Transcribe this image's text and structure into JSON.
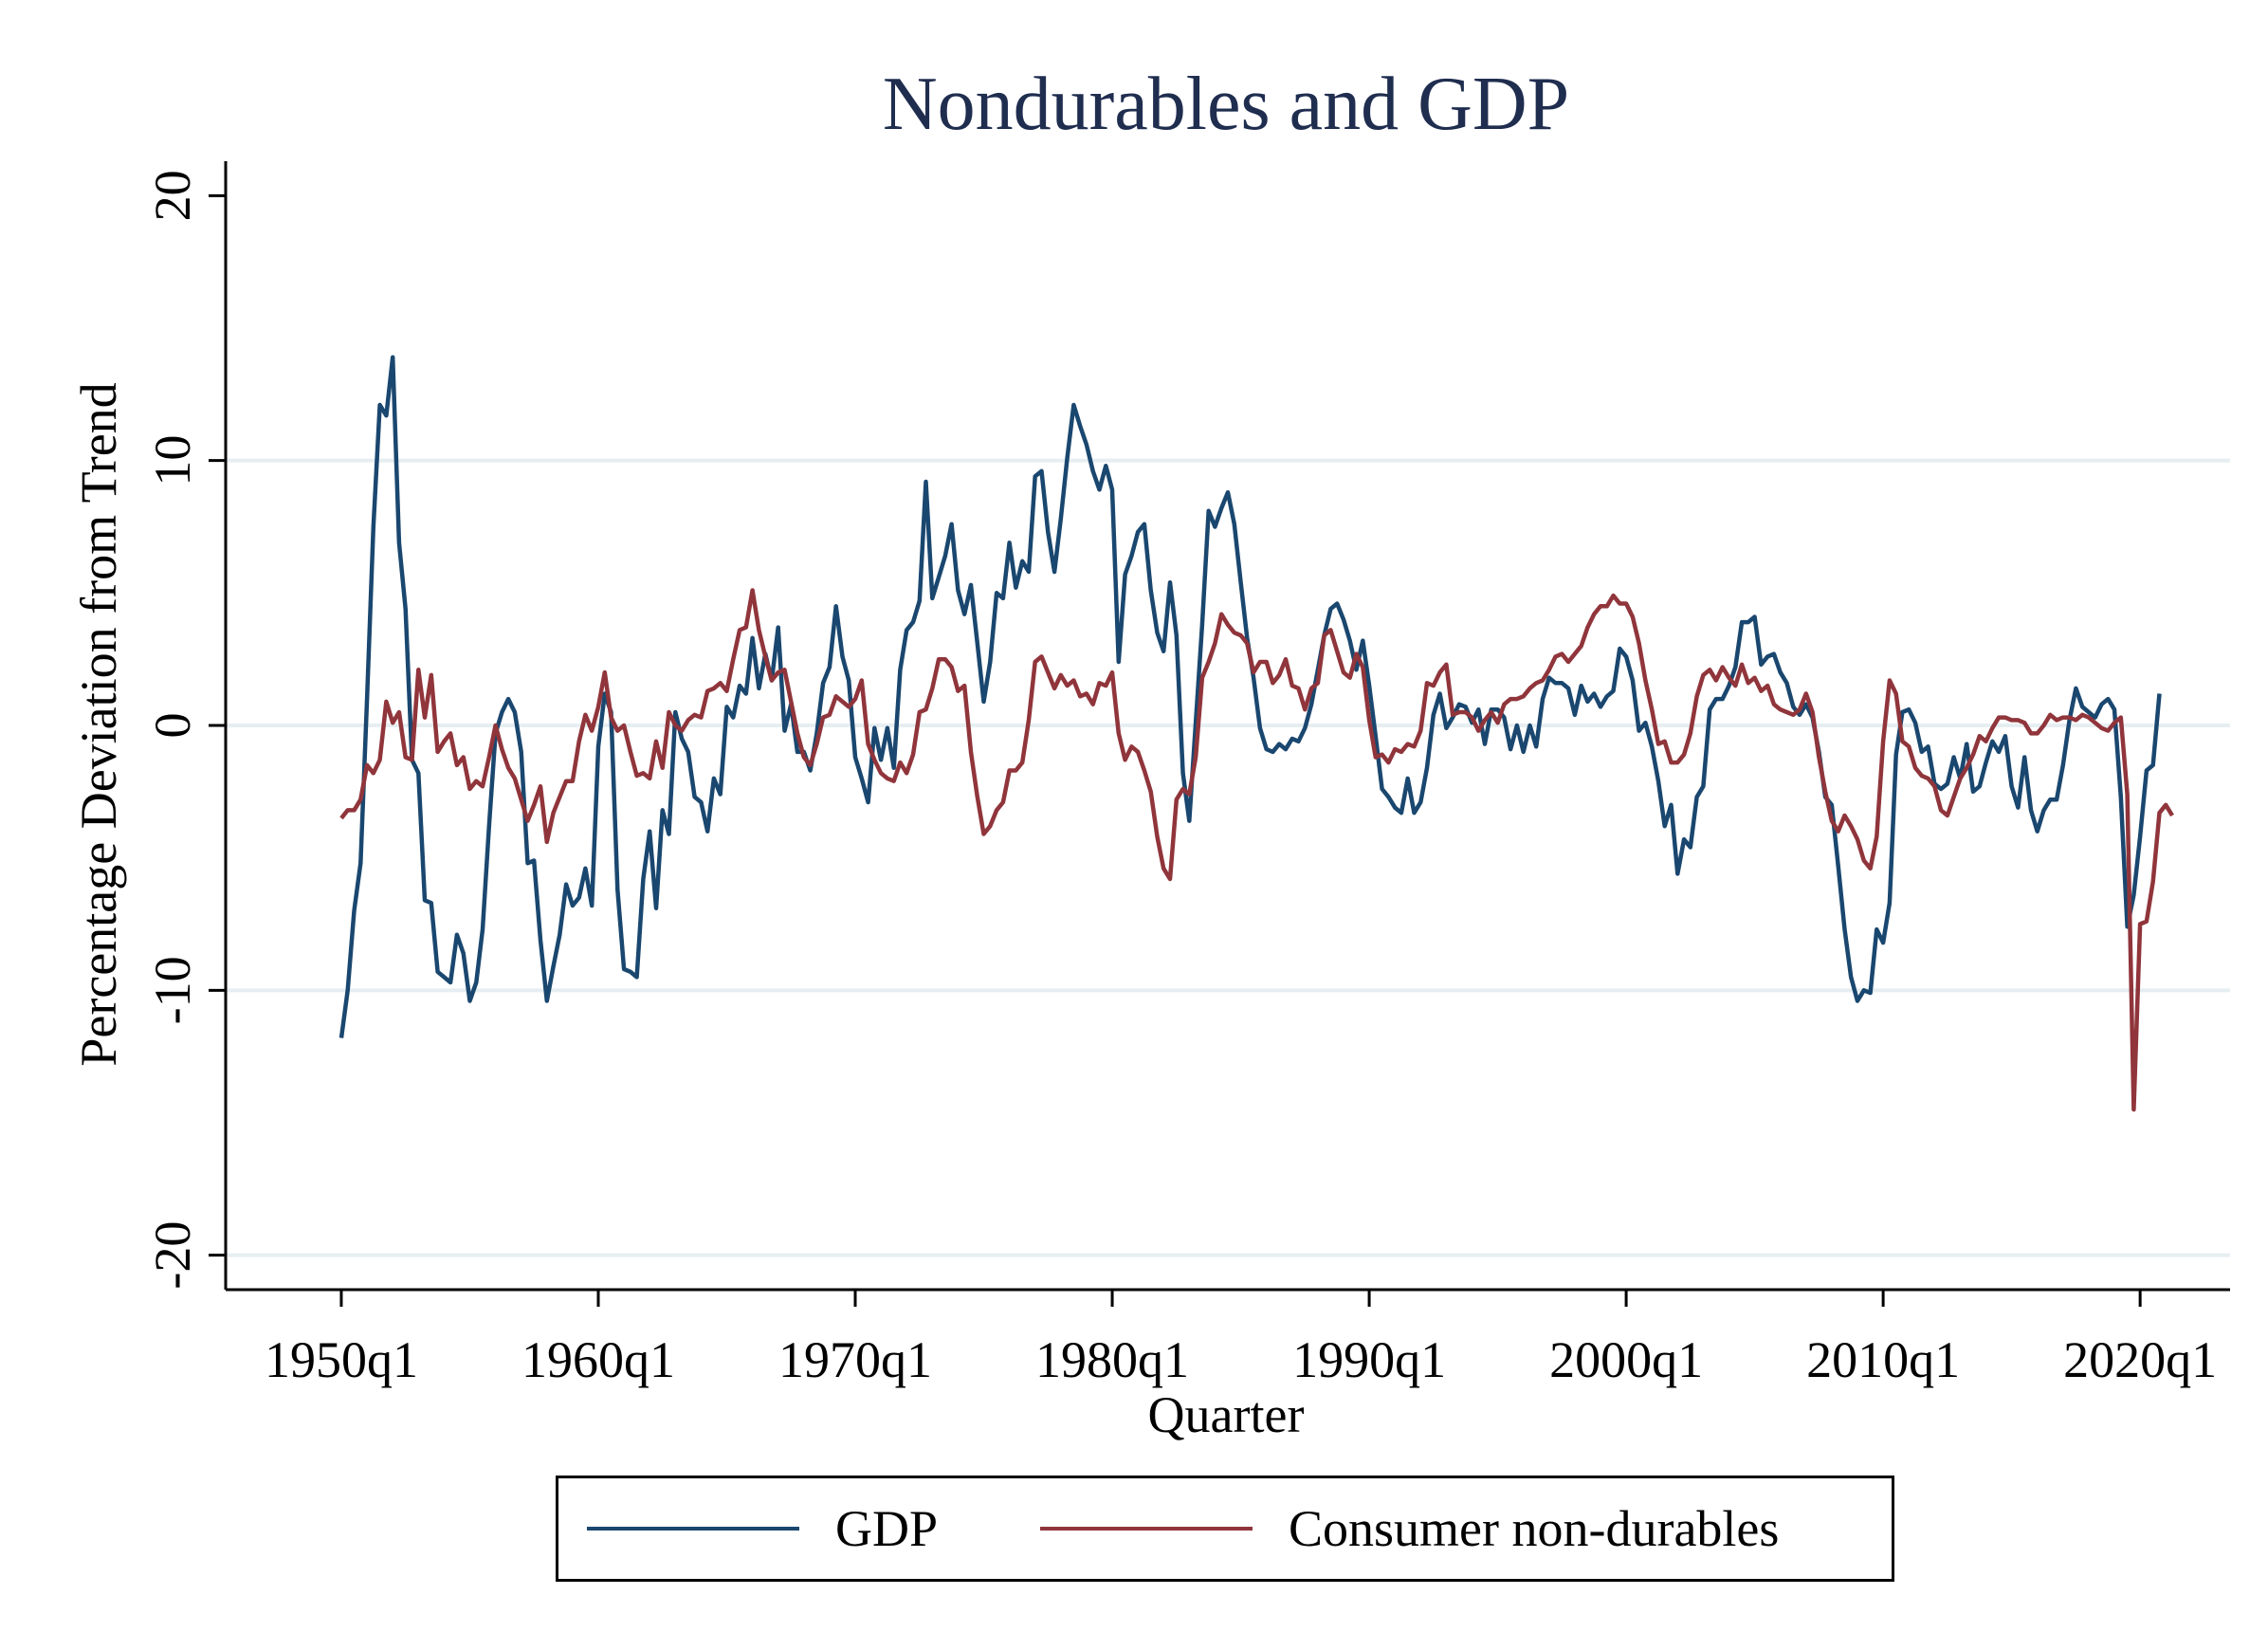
{
  "chart_data": {
    "type": "line",
    "title": "Nondurables and GDP",
    "xlabel": "Quarter",
    "ylabel": "Percentage Deviation from Trend",
    "x_start": "1950q1",
    "x_end": "2021q4",
    "xlim": [
      "1945q3",
      "2023q3"
    ],
    "ylim": [
      -21.3,
      21.3
    ],
    "x_ticks": [
      "1950q1",
      "1960q1",
      "1970q1",
      "1980q1",
      "1990q1",
      "2000q1",
      "2010q1",
      "2020q1"
    ],
    "y_ticks": [
      20,
      10,
      0,
      -10,
      -20
    ],
    "y_tick_labels": [
      "20",
      "10",
      "0",
      "-10",
      "-20"
    ],
    "grid": "horizontal",
    "legend_position": "bottom",
    "series": [
      {
        "name": "GDP",
        "color": "#1a476f",
        "values": [
          -11.8,
          -10.0,
          -7.0,
          -5.2,
          1.0,
          7.5,
          12.1,
          11.7,
          13.9,
          6.9,
          4.4,
          -1.3,
          -1.8,
          -6.6,
          -6.7,
          -9.3,
          -9.5,
          -9.7,
          -7.9,
          -8.6,
          -10.4,
          -9.7,
          -7.7,
          -3.8,
          -0.3,
          0.5,
          1.0,
          0.5,
          -1.0,
          -5.2,
          -5.1,
          -8.1,
          -10.4,
          -9.1,
          -7.9,
          -6.0,
          -6.8,
          -6.5,
          -5.4,
          -6.8,
          -0.8,
          1.2,
          0.5,
          -6.2,
          -9.2,
          -9.3,
          -9.5,
          -5.8,
          -4.0,
          -6.9,
          -3.2,
          -4.1,
          0.5,
          -0.5,
          -1.0,
          -2.7,
          -2.9,
          -4.0,
          -2.0,
          -2.6,
          0.7,
          0.3,
          1.5,
          1.2,
          3.3,
          1.4,
          2.7,
          1.7,
          3.7,
          -0.2,
          0.8,
          -1.0,
          -1.0,
          -1.7,
          -0.3,
          1.6,
          2.2,
          4.5,
          2.6,
          1.7,
          -1.2,
          -2.0,
          -2.9,
          -0.1,
          -1.3,
          -0.1,
          -1.6,
          2.1,
          3.6,
          3.9,
          4.7,
          9.2,
          4.8,
          5.6,
          6.4,
          7.6,
          5.1,
          4.2,
          5.3,
          3.1,
          0.9,
          2.4,
          5.0,
          4.8,
          6.9,
          5.2,
          6.2,
          5.8,
          9.4,
          9.6,
          7.3,
          5.8,
          7.8,
          10.1,
          12.1,
          11.3,
          10.6,
          9.6,
          8.9,
          9.8,
          8.9,
          2.4,
          5.7,
          6.4,
          7.3,
          7.6,
          5.1,
          3.5,
          2.8,
          5.4,
          3.4,
          -1.8,
          -3.6,
          0.1,
          3.8,
          8.1,
          7.5,
          8.2,
          8.8,
          7.6,
          5.4,
          3.3,
          1.8,
          -0.1,
          -0.9,
          -1.0,
          -0.7,
          -0.9,
          -0.5,
          -0.6,
          -0.1,
          0.8,
          2.1,
          3.4,
          4.4,
          4.6,
          4.0,
          3.2,
          2.1,
          3.2,
          1.5,
          -0.4,
          -2.4,
          -2.7,
          -3.1,
          -3.3,
          -2.0,
          -3.3,
          -2.9,
          -1.6,
          0.4,
          1.2,
          -0.1,
          0.3,
          0.8,
          0.7,
          0.1,
          0.6,
          -0.7,
          0.6,
          0.6,
          0.3,
          -0.9,
          0.0,
          -1.0,
          0.0,
          -0.8,
          1.0,
          1.8,
          1.6,
          1.6,
          1.4,
          0.4,
          1.5,
          0.9,
          1.2,
          0.7,
          1.1,
          1.3,
          2.9,
          2.6,
          1.7,
          -0.2,
          0.1,
          -0.8,
          -2.1,
          -3.8,
          -3.0,
          -5.6,
          -4.3,
          -4.6,
          -2.7,
          -2.3,
          0.6,
          1.0,
          1.0,
          1.5,
          2.2,
          3.9,
          3.9,
          4.1,
          2.3,
          2.6,
          2.7,
          2.0,
          1.6,
          0.7,
          0.4,
          0.8,
          0.3,
          -1.0,
          -2.7,
          -3.0,
          -5.3,
          -7.7,
          -9.5,
          -10.4,
          -10.0,
          -10.1,
          -7.7,
          -8.2,
          -6.7,
          -1.1,
          0.5,
          0.6,
          0.1,
          -1.0,
          -0.8,
          -2.2,
          -2.4,
          -2.2,
          -1.2,
          -2.0,
          -0.7,
          -2.5,
          -2.3,
          -1.4,
          -0.6,
          -1.0,
          -0.4,
          -2.3,
          -3.1,
          -1.2,
          -3.2,
          -4.0,
          -3.2,
          -2.8,
          -2.8,
          -1.5,
          0.2,
          1.4,
          0.7,
          0.5,
          0.3,
          0.8,
          1.0,
          0.6,
          -2.7,
          -7.6,
          -6.4,
          -4.2,
          -1.7,
          -1.5,
          1.2
        ]
      },
      {
        "name": "Consumer non-durables",
        "color": "#90353b",
        "values": [
          -3.5,
          -3.2,
          -3.2,
          -2.8,
          -1.5,
          -1.8,
          -1.3,
          0.9,
          0.1,
          0.5,
          -1.2,
          -1.3,
          2.1,
          0.3,
          1.9,
          -1.0,
          -0.6,
          -0.3,
          -1.5,
          -1.2,
          -2.4,
          -2.1,
          -2.3,
          -1.2,
          0.0,
          -0.9,
          -1.6,
          -2.0,
          -2.8,
          -3.6,
          -3.0,
          -2.3,
          -4.4,
          -3.3,
          -2.7,
          -2.1,
          -2.1,
          -0.6,
          0.4,
          -0.2,
          0.7,
          2.0,
          0.3,
          -0.2,
          0.0,
          -1.0,
          -1.9,
          -1.8,
          -2.0,
          -0.6,
          -1.6,
          0.5,
          0.0,
          -0.2,
          0.2,
          0.4,
          0.3,
          1.3,
          1.4,
          1.6,
          1.3,
          2.5,
          3.6,
          3.7,
          5.1,
          3.6,
          2.6,
          1.7,
          2.0,
          2.1,
          0.9,
          -0.3,
          -1.2,
          -1.5,
          -0.7,
          0.3,
          0.4,
          1.1,
          0.9,
          0.7,
          1.0,
          1.7,
          -0.7,
          -1.3,
          -1.8,
          -2.0,
          -2.1,
          -1.4,
          -1.8,
          -1.1,
          0.5,
          0.6,
          1.4,
          2.5,
          2.5,
          2.2,
          1.3,
          1.5,
          -1.0,
          -2.7,
          -4.1,
          -3.8,
          -3.2,
          -2.9,
          -1.7,
          -1.7,
          -1.4,
          0.2,
          2.4,
          2.6,
          2.0,
          1.4,
          1.9,
          1.5,
          1.7,
          1.1,
          1.2,
          0.8,
          1.6,
          1.5,
          2.0,
          -0.3,
          -1.3,
          -0.8,
          -1.0,
          -1.7,
          -2.5,
          -4.2,
          -5.4,
          -5.8,
          -2.8,
          -2.4,
          -2.6,
          -1.2,
          1.8,
          2.4,
          3.1,
          4.2,
          3.8,
          3.5,
          3.4,
          3.1,
          2.0,
          2.4,
          2.4,
          1.6,
          1.9,
          2.5,
          1.5,
          1.4,
          0.6,
          1.4,
          1.6,
          3.4,
          3.6,
          2.8,
          2.0,
          1.8,
          2.7,
          2.2,
          0.2,
          -1.2,
          -1.1,
          -1.4,
          -0.9,
          -1.0,
          -0.7,
          -0.8,
          -0.2,
          1.6,
          1.5,
          2.0,
          2.3,
          0.4,
          0.5,
          0.5,
          0.3,
          -0.2,
          0.2,
          0.5,
          0.1,
          0.8,
          1.0,
          1.0,
          1.1,
          1.4,
          1.6,
          1.7,
          2.1,
          2.6,
          2.7,
          2.4,
          2.7,
          3.0,
          3.7,
          4.2,
          4.5,
          4.5,
          4.9,
          4.6,
          4.6,
          4.1,
          3.1,
          1.7,
          0.6,
          -0.7,
          -0.6,
          -1.4,
          -1.4,
          -1.1,
          -0.3,
          1.1,
          1.9,
          2.1,
          1.7,
          2.2,
          1.8,
          1.5,
          2.3,
          1.6,
          1.8,
          1.3,
          1.5,
          0.8,
          0.6,
          0.5,
          0.4,
          0.6,
          1.2,
          0.5,
          -1.2,
          -2.5,
          -3.6,
          -4.0,
          -3.4,
          -3.8,
          -4.3,
          -5.1,
          -5.4,
          -4.2,
          -0.6,
          1.7,
          1.2,
          -0.6,
          -0.8,
          -1.6,
          -1.9,
          -2.0,
          -2.3,
          -3.2,
          -3.4,
          -2.7,
          -2.0,
          -1.6,
          -1.1,
          -0.4,
          -0.6,
          -0.1,
          0.3,
          0.3,
          0.2,
          0.2,
          0.1,
          -0.3,
          -0.3,
          0.0,
          0.4,
          0.2,
          0.3,
          0.3,
          0.2,
          0.4,
          0.3,
          0.1,
          -0.1,
          -0.2,
          0.1,
          0.3,
          -2.6,
          -14.5,
          -7.5,
          -7.4,
          -5.9,
          -3.3,
          -3.0,
          -3.4
        ]
      }
    ]
  }
}
